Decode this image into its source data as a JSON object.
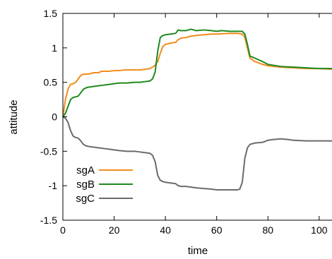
{
  "chart_data": {
    "type": "line",
    "title": "",
    "xlabel": "time",
    "ylabel": "attitude",
    "xlim": [
      0,
      105
    ],
    "ylim": [
      -1.5,
      1.5
    ],
    "xticks": [
      0,
      20,
      40,
      60,
      80,
      100
    ],
    "xtick_labels": [
      "0",
      "20",
      "40",
      "60",
      "80",
      "100"
    ],
    "yticks": [
      -1.5,
      -1,
      -0.5,
      0,
      0.5,
      1,
      1.5
    ],
    "ytick_labels": [
      "-1.5",
      "-1",
      "-0.5",
      "0",
      "0.5",
      "1",
      "1.5"
    ],
    "grid": false,
    "legend_position": "bottom-left",
    "series": [
      {
        "name": "sgA",
        "color": "#f28c1c",
        "x": [
          0,
          1,
          2,
          3,
          4,
          5,
          6,
          7,
          8,
          9,
          10,
          12,
          14,
          15,
          16,
          18,
          20,
          22,
          24,
          26,
          28,
          30,
          32,
          34,
          35,
          36,
          37,
          38,
          39,
          40,
          42,
          44,
          45,
          46,
          48,
          50,
          52,
          55,
          58,
          60,
          65,
          68,
          70,
          71,
          72,
          73,
          75,
          78,
          80,
          85,
          90,
          95,
          100,
          105
        ],
        "y": [
          0.0,
          0.25,
          0.4,
          0.47,
          0.48,
          0.5,
          0.55,
          0.6,
          0.62,
          0.62,
          0.62,
          0.64,
          0.64,
          0.66,
          0.66,
          0.66,
          0.67,
          0.67,
          0.68,
          0.68,
          0.68,
          0.68,
          0.69,
          0.7,
          0.72,
          0.75,
          0.8,
          0.92,
          1.02,
          1.05,
          1.07,
          1.08,
          1.12,
          1.14,
          1.15,
          1.17,
          1.18,
          1.19,
          1.2,
          1.2,
          1.21,
          1.21,
          1.2,
          1.15,
          1.0,
          0.85,
          0.8,
          0.76,
          0.74,
          0.72,
          0.71,
          0.7,
          0.7,
          0.69
        ]
      },
      {
        "name": "sgB",
        "color": "#1e8a1e",
        "x": [
          0,
          1,
          2,
          3,
          4,
          5,
          6,
          7,
          8,
          9,
          10,
          12,
          14,
          16,
          18,
          20,
          22,
          25,
          28,
          30,
          32,
          34,
          35,
          36,
          37,
          38,
          39,
          40,
          42,
          44,
          45,
          46,
          48,
          50,
          52,
          55,
          58,
          60,
          62,
          65,
          68,
          70,
          71,
          72,
          73,
          75,
          78,
          80,
          85,
          90,
          95,
          100,
          105
        ],
        "y": [
          0.0,
          0.05,
          0.15,
          0.25,
          0.28,
          0.29,
          0.3,
          0.35,
          0.4,
          0.42,
          0.43,
          0.44,
          0.45,
          0.46,
          0.47,
          0.48,
          0.49,
          0.49,
          0.5,
          0.5,
          0.51,
          0.52,
          0.55,
          0.65,
          0.95,
          1.15,
          1.18,
          1.19,
          1.2,
          1.21,
          1.26,
          1.25,
          1.25,
          1.27,
          1.25,
          1.26,
          1.25,
          1.24,
          1.25,
          1.24,
          1.24,
          1.24,
          1.2,
          1.05,
          0.88,
          0.85,
          0.8,
          0.76,
          0.73,
          0.72,
          0.71,
          0.7,
          0.7
        ]
      },
      {
        "name": "sgC",
        "color": "#6b6b6b",
        "x": [
          0,
          1,
          2,
          3,
          4,
          5,
          6,
          7,
          8,
          9,
          10,
          12,
          14,
          16,
          18,
          20,
          22,
          25,
          28,
          30,
          32,
          34,
          35,
          36,
          37,
          38,
          39,
          40,
          42,
          44,
          45,
          46,
          48,
          50,
          52,
          55,
          58,
          60,
          62,
          65,
          68,
          69,
          70,
          71,
          72,
          73,
          75,
          78,
          80,
          82,
          85,
          88,
          90,
          95,
          100,
          105
        ],
        "y": [
          0.0,
          -0.02,
          -0.08,
          -0.2,
          -0.28,
          -0.3,
          -0.31,
          -0.35,
          -0.4,
          -0.42,
          -0.43,
          -0.44,
          -0.45,
          -0.46,
          -0.47,
          -0.48,
          -0.49,
          -0.5,
          -0.5,
          -0.51,
          -0.52,
          -0.53,
          -0.56,
          -0.65,
          -0.85,
          -0.92,
          -0.94,
          -0.95,
          -0.96,
          -0.97,
          -1.0,
          -1.01,
          -1.01,
          -1.02,
          -1.03,
          -1.04,
          -1.05,
          -1.06,
          -1.06,
          -1.06,
          -1.06,
          -1.05,
          -0.95,
          -0.6,
          -0.45,
          -0.4,
          -0.38,
          -0.37,
          -0.34,
          -0.33,
          -0.32,
          -0.33,
          -0.34,
          -0.35,
          -0.35,
          -0.35
        ]
      }
    ]
  }
}
